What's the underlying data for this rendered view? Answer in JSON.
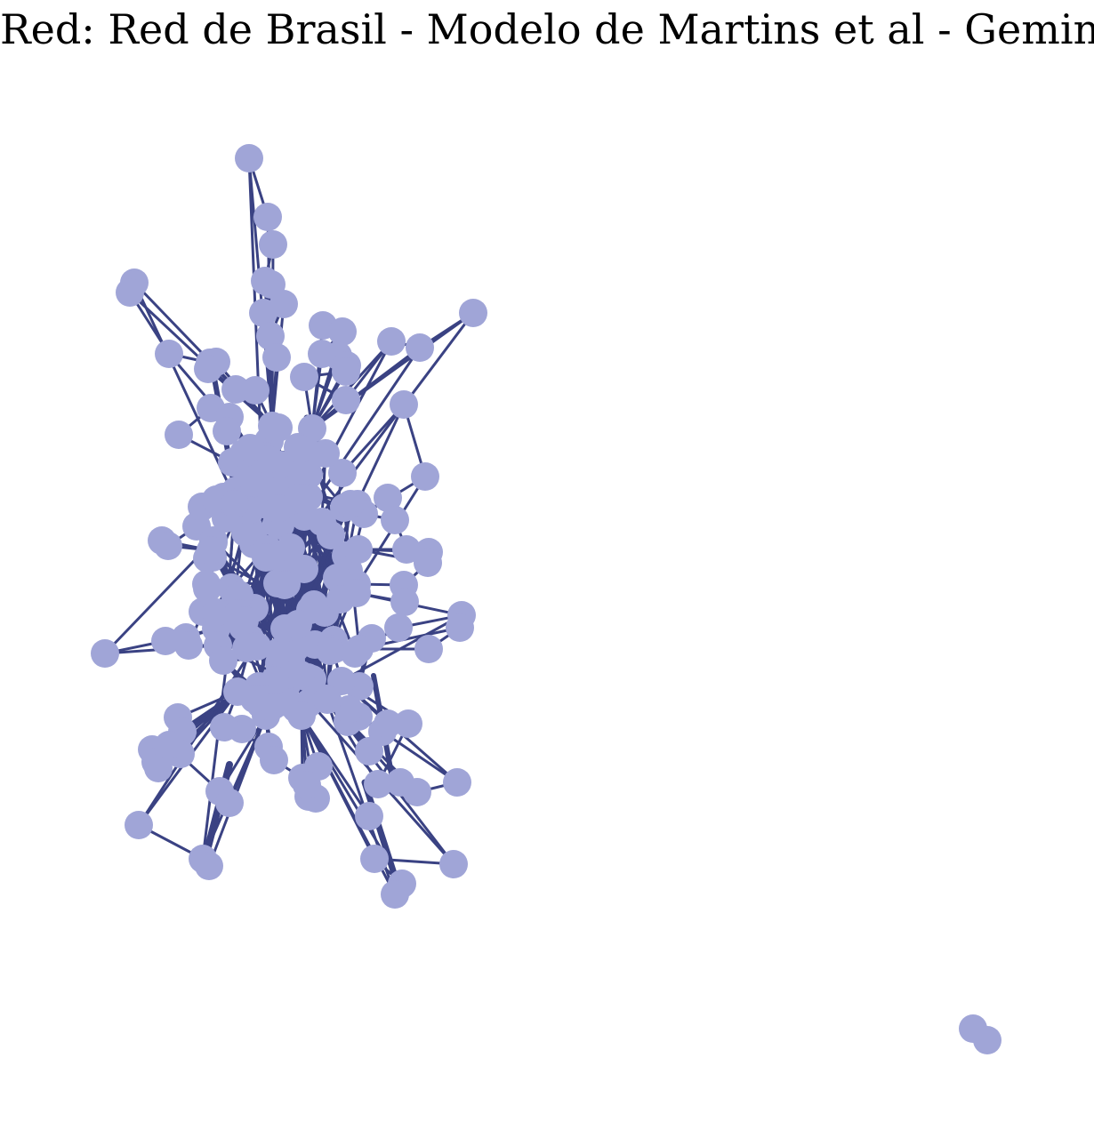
{
  "title": "Red: Red de Brasil - Modelo de Martins et al - Gemini.",
  "colors": {
    "node": "#a0a5d7",
    "edge": "#3a4283",
    "background": "#ffffff"
  },
  "network": {
    "layout": "force-directed",
    "components": [
      {
        "name": "main-component",
        "approx_node_count": 200
      },
      {
        "name": "isolated-pair",
        "node_count": 2
      }
    ]
  }
}
